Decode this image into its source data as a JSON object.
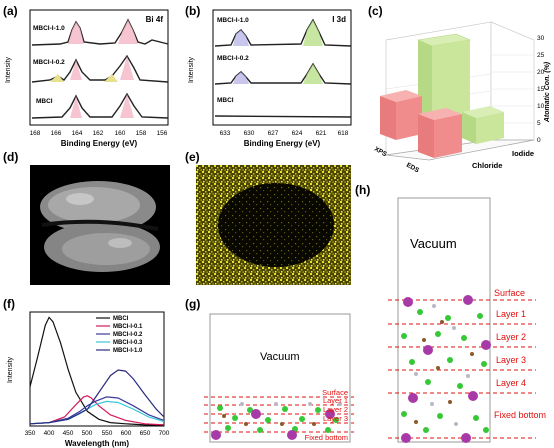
{
  "labels": {
    "a": "(a)",
    "b": "(b)",
    "c": "(c)",
    "d": "(d)",
    "e": "(e)",
    "f": "(f)",
    "g": "(g)",
    "h": "(h)"
  },
  "panel_a": {
    "title": "Bi 4f",
    "ylabel": "Intensity",
    "xlabel": "Binding Energy (eV)",
    "xticks": [
      "168",
      "166",
      "164",
      "162",
      "160",
      "158",
      "156"
    ],
    "traces": [
      "MBCI-I-1.0",
      "MBCI-I-0.2",
      "MBCI"
    ]
  },
  "panel_b": {
    "title": "I 3d",
    "ylabel": "Intensity",
    "xlabel": "Binding Energy (eV)",
    "xticks": [
      "633",
      "630",
      "627",
      "624",
      "621",
      "618"
    ],
    "traces": [
      "MBCI-I-1.0",
      "MBCI-I-0.2",
      "MBCI"
    ]
  },
  "panel_c": {
    "zlabel": "Atomatic Con. (%)",
    "zticks": [
      "0",
      "5",
      "10",
      "15",
      "20",
      "25",
      "30"
    ],
    "rows": [
      "XPS",
      "EDS"
    ],
    "cols": [
      "Iodide",
      "Chloride"
    ],
    "colors": {
      "iodide": "#c9e69a",
      "chloride": "#f08c8c"
    }
  },
  "chart_data": {
    "type": "line",
    "title": "",
    "xlabel": "Wavelength (nm)",
    "ylabel": "Intensity",
    "xlim": [
      350,
      700
    ],
    "xticks": [
      "350",
      "400",
      "450",
      "500",
      "550",
      "600",
      "650",
      "700"
    ],
    "series": [
      {
        "name": "MBCI",
        "color": "#111111",
        "x": [
          350,
          370,
          390,
          400,
          410,
          430,
          450,
          470,
          500,
          530,
          560,
          600,
          650,
          700
        ],
        "y": [
          0.35,
          0.62,
          0.9,
          0.97,
          0.93,
          0.74,
          0.5,
          0.3,
          0.13,
          0.06,
          0.03,
          0.02,
          0.01,
          0.01
        ]
      },
      {
        "name": "MBCI-I-0.1",
        "color": "#d6195a",
        "x": [
          350,
          400,
          440,
          470,
          490,
          500,
          510,
          530,
          560,
          600,
          650,
          700
        ],
        "y": [
          0.02,
          0.03,
          0.08,
          0.19,
          0.26,
          0.27,
          0.25,
          0.18,
          0.1,
          0.05,
          0.02,
          0.01
        ]
      },
      {
        "name": "MBCI-I-0.2",
        "color": "#3a3aa0",
        "x": [
          350,
          400,
          450,
          480,
          500,
          520,
          550,
          580,
          620,
          660,
          700
        ],
        "y": [
          0.02,
          0.03,
          0.07,
          0.13,
          0.18,
          0.22,
          0.26,
          0.25,
          0.18,
          0.1,
          0.05
        ]
      },
      {
        "name": "MBCI-I-0.3",
        "color": "#38c8d8",
        "x": [
          350,
          400,
          450,
          480,
          500,
          520,
          550,
          580,
          620,
          660,
          700
        ],
        "y": [
          0.02,
          0.03,
          0.06,
          0.11,
          0.15,
          0.19,
          0.22,
          0.21,
          0.15,
          0.08,
          0.04
        ]
      },
      {
        "name": "MBCI-I-1.0",
        "color": "#2a2a80",
        "x": [
          350,
          400,
          450,
          500,
          530,
          560,
          580,
          600,
          620,
          650,
          680,
          700
        ],
        "y": [
          0.02,
          0.03,
          0.06,
          0.15,
          0.3,
          0.45,
          0.5,
          0.49,
          0.42,
          0.28,
          0.15,
          0.08
        ]
      }
    ]
  },
  "panel_g": {
    "vacuum": "Vacuum",
    "layers": [
      "Surface",
      "Layer 1",
      "Layer 2",
      "Layer 3",
      "Fixed bottom"
    ]
  },
  "panel_h": {
    "vacuum": "Vacuum",
    "layers": [
      "Surface",
      "Layer 1",
      "Layer 2",
      "Layer 3",
      "Layer 4",
      "Fixed bottom"
    ]
  }
}
